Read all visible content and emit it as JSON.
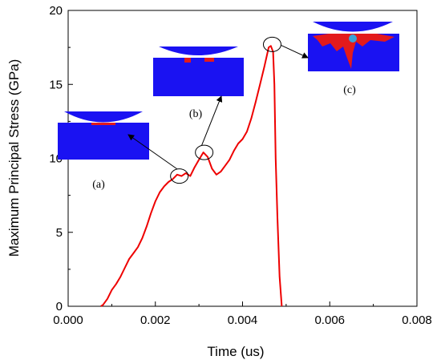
{
  "chart_data": {
    "type": "line",
    "title": "",
    "xlabel": "Time (us)",
    "ylabel": "Maximum Principal Stress (GPa)",
    "xlim": [
      0,
      0.008
    ],
    "ylim": [
      0,
      20
    ],
    "xticks": [
      "0.000",
      "0.002",
      "0.004",
      "0.006",
      "0.008"
    ],
    "yticks": [
      "0",
      "5",
      "10",
      "15",
      "20"
    ],
    "grid": false,
    "series": [
      {
        "color": "#ee0000",
        "x": [
          0.00075,
          0.0008,
          0.0009,
          0.001,
          0.0011,
          0.0012,
          0.0013,
          0.0014,
          0.0015,
          0.0016,
          0.0017,
          0.0018,
          0.0019,
          0.002,
          0.0021,
          0.0022,
          0.0023,
          0.0024,
          0.0025,
          0.0026,
          0.0027,
          0.0028,
          0.0029,
          0.003,
          0.0031,
          0.0032,
          0.0033,
          0.0034,
          0.0035,
          0.0036,
          0.0037,
          0.0038,
          0.0039,
          0.004,
          0.0041,
          0.0042,
          0.0043,
          0.0044,
          0.0045,
          0.0046,
          0.00465,
          0.0047,
          0.00473,
          0.00476,
          0.0048,
          0.00485,
          0.0049
        ],
        "y": [
          0,
          0.1,
          0.5,
          1.1,
          1.5,
          2.0,
          2.6,
          3.2,
          3.6,
          4.0,
          4.6,
          5.4,
          6.3,
          7.1,
          7.7,
          8.1,
          8.4,
          8.6,
          8.9,
          8.8,
          9.0,
          8.8,
          9.4,
          9.9,
          10.4,
          10.1,
          9.3,
          8.9,
          9.1,
          9.5,
          9.9,
          10.5,
          11.0,
          11.3,
          11.8,
          12.7,
          13.8,
          15.0,
          16.2,
          17.5,
          17.6,
          17.2,
          15.0,
          10.0,
          6.0,
          2.0,
          0
        ]
      }
    ],
    "markers": [
      {
        "label": "(a)",
        "x": 0.00255,
        "y": 8.8
      },
      {
        "label": "(b)",
        "x": 0.00312,
        "y": 10.4
      },
      {
        "label": "(c)",
        "x": 0.00468,
        "y": 17.7
      }
    ]
  }
}
